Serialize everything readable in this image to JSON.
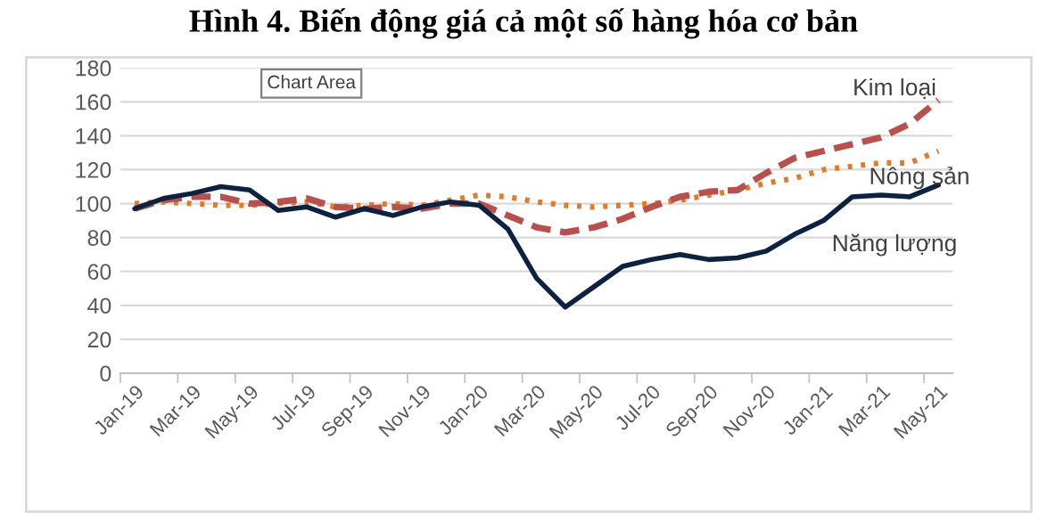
{
  "chart_data": {
    "type": "line",
    "title": "Hình 4. Biến động giá cả một số hàng hóa cơ bản",
    "categories": [
      "Jan-19",
      null,
      "Mar-19",
      null,
      "May-19",
      null,
      "Jul-19",
      null,
      "Sep-19",
      null,
      "Nov-19",
      null,
      "Jan-20",
      null,
      "Mar-20",
      null,
      "May-20",
      null,
      "Jul-20",
      null,
      "Sep-20",
      null,
      "Nov-20",
      null,
      "Jan-21",
      null,
      "Mar-21",
      null,
      "May-21"
    ],
    "series": [
      {
        "name": "Năng lượng",
        "color": "#0d2240",
        "line_style": "solid",
        "values": [
          97,
          103,
          106,
          110,
          108,
          96,
          98,
          92,
          97,
          93,
          98,
          101,
          99,
          85,
          56,
          39,
          51,
          63,
          67,
          70,
          67,
          68,
          72,
          82,
          90,
          104,
          105,
          104,
          111
        ]
      },
      {
        "name": "Kim loại",
        "color": "#b9504c",
        "line_style": "dashed",
        "values": [
          97,
          102,
          104,
          104,
          100,
          101,
          103,
          98,
          97,
          98,
          97,
          100,
          100,
          93,
          86,
          83,
          86,
          91,
          98,
          104,
          107,
          108,
          118,
          127,
          131,
          135,
          139,
          147,
          161
        ]
      },
      {
        "name": "Nông sản",
        "color": "#e07b2a",
        "line_style": "dotted",
        "values": [
          100,
          101,
          100,
          99,
          99,
          100,
          101,
          98,
          99,
          100,
          99,
          102,
          105,
          104,
          101,
          99,
          98,
          99,
          100,
          102,
          105,
          108,
          112,
          115,
          120,
          122,
          124,
          124,
          131
        ]
      }
    ],
    "ylim": [
      0,
      180
    ],
    "yticks": [
      0,
      20,
      40,
      60,
      80,
      100,
      120,
      140,
      160,
      180
    ],
    "grid": "y",
    "legend": false,
    "marker": "none",
    "annotations": [
      "Chart Area"
    ]
  }
}
